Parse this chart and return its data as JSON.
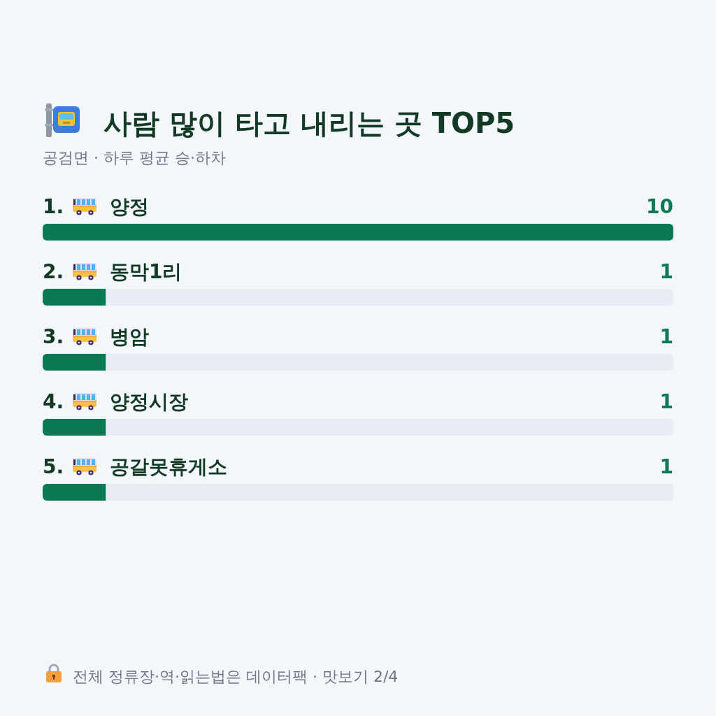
{
  "chart_data": {
    "type": "bar",
    "orientation": "horizontal",
    "title": "사람 많이 타고 내리는 곳 TOP5",
    "subtitle": "공검면 · 하루 평균 승·하차",
    "categories": [
      "양정",
      "동막1리",
      "병암",
      "양정시장",
      "공갈못휴게소"
    ],
    "values": [
      10,
      1,
      1,
      1,
      1
    ],
    "color": "#0b7a52",
    "xlim": [
      0,
      10
    ],
    "data_labels": true,
    "annotations": [
      "1.",
      "2.",
      "3.",
      "4.",
      "5.",
      "전체 정류장·역·읽는법은 데이터팩 · 맛보기 2/4"
    ]
  }
}
